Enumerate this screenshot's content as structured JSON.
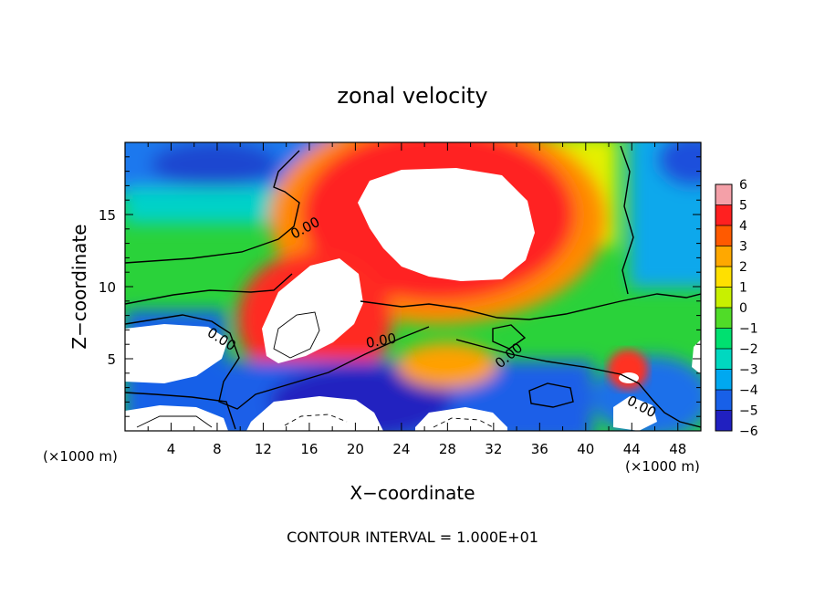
{
  "chart_data": {
    "type": "heatmap",
    "title": "zonal velocity",
    "xlabel": "X−coordinate",
    "ylabel": "Z−coordinate",
    "x_unit_left": "(×1000 m)",
    "x_unit_right": "(×1000 m)",
    "xlim": [
      0,
      50
    ],
    "ylim": [
      0,
      20
    ],
    "x_ticks": [
      4,
      8,
      12,
      16,
      20,
      24,
      28,
      32,
      36,
      40,
      44,
      48
    ],
    "x_tick_labels": [
      "4",
      "8",
      "12",
      "16",
      "20",
      "24",
      "28",
      "32",
      "36",
      "40",
      "44",
      "48"
    ],
    "y_ticks": [
      5,
      10,
      15
    ],
    "y_tick_labels": [
      "5",
      "10",
      "15"
    ],
    "colorbar_ticks": [
      6,
      5,
      4,
      3,
      2,
      1,
      0,
      -1,
      -2,
      -3,
      -4,
      -5,
      -6
    ],
    "colorbar_tick_labels": [
      "6",
      "5",
      "4",
      "3",
      "2",
      "1",
      "0",
      "−1",
      "−2",
      "−3",
      "−4",
      "−5",
      "−6"
    ],
    "colorbar_colors": [
      "#f4a0a8",
      "#ff2020",
      "#ff5a00",
      "#ffa800",
      "#ffe000",
      "#c8f000",
      "#50dc28",
      "#00e070",
      "#00d8c0",
      "#00a8f0",
      "#1860e8",
      "#2020c0",
      "#7a10a8"
    ],
    "contour_labels": [
      "0.00",
      "0.00",
      "0.00",
      "0.00",
      "0.00"
    ],
    "footer": "CONTOUR INTERVAL = 1.000E+01"
  }
}
